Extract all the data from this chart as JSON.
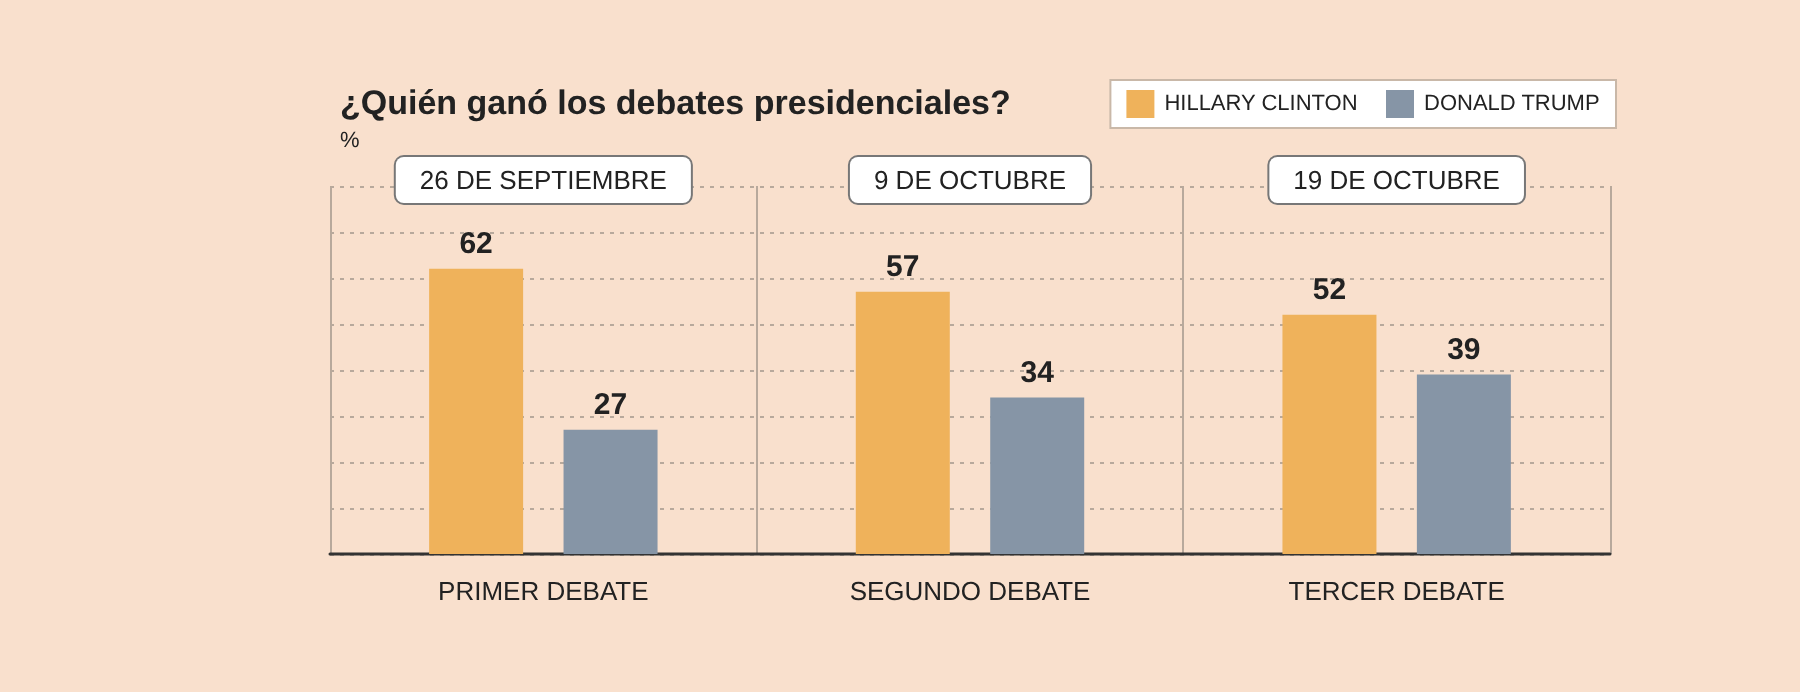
{
  "chart_data": {
    "type": "bar",
    "title": "¿Quién ganó los debates presidenciales?",
    "ylabel": "%",
    "categories": [
      "PRIMER DEBATE",
      "SEGUNDO DEBATE",
      "TERCER DEBATE"
    ],
    "series": [
      {
        "name": "HILLARY CLINTON",
        "color": "#efb25b",
        "values": [
          62,
          57,
          52
        ]
      },
      {
        "name": "DONALD TRUMP",
        "color": "#8695a6",
        "values": [
          27,
          34,
          39
        ]
      }
    ],
    "annotations": [
      "26 DE SEPTIEMBRE",
      "9 DE OCTUBRE",
      "19 DE OCTUBRE"
    ],
    "ylim": [
      0,
      80
    ],
    "yticks": [
      {
        "value": 0,
        "label": null
      },
      {
        "value": 10,
        "label": null
      },
      {
        "value": 20,
        "label": null
      },
      {
        "value": 30,
        "label": null
      },
      {
        "value": 40,
        "label": null
      },
      {
        "value": 50,
        "label": null
      },
      {
        "value": 60,
        "label": null
      },
      {
        "value": 70,
        "label": null
      },
      {
        "value": 80,
        "label": null
      }
    ],
    "tick_labels": "x",
    "grid": true,
    "legend": "top right",
    "data_labels": true
  }
}
